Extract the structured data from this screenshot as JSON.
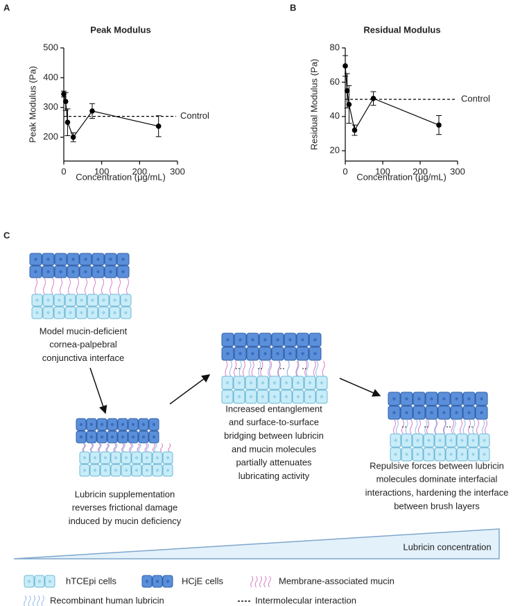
{
  "chart_data": [
    {
      "type": "line",
      "panel": "A",
      "title": "Peak Modulus",
      "x_label": "Concentration (μg/mL)",
      "y_label": "Peak Modulus (Pa)",
      "series": [
        {
          "x": [
            0,
            5,
            10,
            25,
            75,
            250
          ],
          "values": [
            345,
            320,
            250,
            200,
            288,
            237
          ],
          "errors": [
            10,
            30,
            45,
            15,
            25,
            35
          ],
          "color": "#000000"
        }
      ],
      "control": {
        "label": "Control",
        "value": 270
      },
      "xlim": [
        0,
        300
      ],
      "xticks": [
        0,
        100,
        200,
        300
      ],
      "ylim": [
        120,
        500
      ],
      "yticks": [
        200,
        300,
        400,
        500
      ]
    },
    {
      "type": "line",
      "panel": "B",
      "title": "Residual Modulus",
      "x_label": "Concentration (μg/mL)",
      "y_label": "Residual Modulus (Pa)",
      "series": [
        {
          "x": [
            0,
            5,
            10,
            25,
            75,
            250
          ],
          "values": [
            69.5,
            55,
            47,
            32,
            50.5,
            35
          ],
          "errors": [
            6,
            10,
            11,
            3,
            4,
            5.5
          ],
          "color": "#000000"
        }
      ],
      "control": {
        "label": "Control",
        "value": 50
      },
      "xlim": [
        0,
        300
      ],
      "xticks": [
        0,
        100,
        200,
        300
      ],
      "ylim": [
        14,
        80
      ],
      "yticks": [
        20,
        40,
        60,
        80
      ]
    }
  ],
  "diagram": {
    "label": "C",
    "stages": [
      {
        "caption": [
          "Model mucin-deficient",
          "cornea-palpebral",
          "conjunctiva interface"
        ]
      },
      {
        "caption": [
          "Lubricin supplementation",
          "reverses frictional damage",
          "induced by mucin deficiency"
        ]
      },
      {
        "caption": [
          "Increased entanglement",
          "and surface-to-surface",
          "bridging between lubricin",
          "and mucin molecules",
          "partially attenuates",
          "lubricating activity"
        ]
      },
      {
        "caption": [
          "Repulsive forces between lubricin",
          "molecules dominate interfacial",
          "interactions, hardening the interface",
          "between brush layers"
        ]
      }
    ],
    "gradient_label": "Lubricin concentration",
    "legend": [
      "hTCEpi cells",
      "HCjE cells",
      "Membrane-associated mucin",
      "Recombinant human lubricin",
      "Intermolecular interaction"
    ]
  }
}
